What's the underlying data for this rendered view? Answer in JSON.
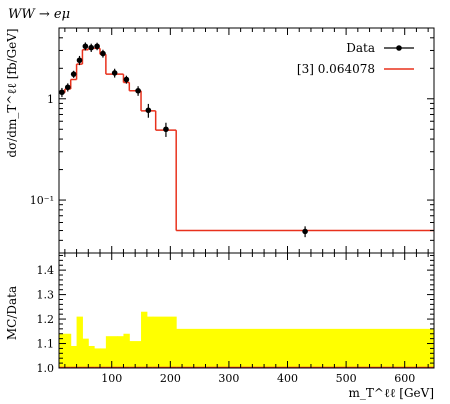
{
  "chart_data": [
    {
      "type": "line",
      "title": "WW → eμ",
      "ylabel": "dσ/dm_T^ℓℓ [fb/GeV]",
      "yscale": "log",
      "ylim": [
        0.03,
        5
      ],
      "xlim": [
        10,
        650
      ],
      "ytick_labels": [
        "1",
        "10⁻¹"
      ],
      "legend": {
        "placement": "top-right",
        "entries": [
          "Data",
          "[3] 0.064078"
        ]
      },
      "series": [
        {
          "name": "Data",
          "style": "points",
          "color": "#000000",
          "x": [
            15,
            25,
            35,
            45,
            55,
            65,
            75,
            85,
            105,
            125,
            145,
            162.5,
            192.5,
            430
          ],
          "y": [
            1.16,
            1.3,
            1.75,
            2.4,
            3.3,
            3.2,
            3.3,
            2.8,
            1.8,
            1.55,
            1.2,
            0.77,
            0.5,
            0.049
          ],
          "yerr": [
            0.12,
            0.12,
            0.14,
            0.25,
            0.3,
            0.3,
            0.28,
            0.25,
            0.18,
            0.14,
            0.13,
            0.12,
            0.08,
            0.006
          ]
        },
        {
          "name": "[3] 0.064078",
          "style": "step",
          "color": "#e8311c",
          "edges": [
            10,
            20,
            30,
            40,
            50,
            60,
            70,
            80,
            90,
            120,
            130,
            150,
            175,
            210,
            650
          ],
          "values": [
            1.15,
            1.25,
            1.55,
            2.2,
            3.05,
            3.15,
            3.15,
            2.75,
            1.75,
            1.45,
            1.2,
            0.76,
            0.49,
            0.05
          ]
        }
      ]
    },
    {
      "type": "area",
      "ylabel": "MC/Data",
      "xlabel": "m_T^ℓℓ [GeV]",
      "ylim": [
        1.0,
        1.47
      ],
      "xlim": [
        10,
        650
      ],
      "ytick_labels": [
        "1.0",
        "1.1",
        "1.2",
        "1.3",
        "1.4"
      ],
      "xtick_labels": [
        "100",
        "200",
        "300",
        "400",
        "500",
        "600"
      ],
      "band_color": "#ffff00",
      "ratio_line_color": "#e8311c",
      "edges": [
        10,
        30,
        40,
        50,
        60,
        70,
        80,
        90,
        110,
        120,
        130,
        150,
        160,
        170,
        210,
        650
      ],
      "upper": [
        1.14,
        1.09,
        1.21,
        1.12,
        1.09,
        1.08,
        1.08,
        1.13,
        1.13,
        1.14,
        1.11,
        1.23,
        1.21,
        1.21,
        1.16
      ],
      "ratio": [
        0.99,
        0.99,
        0.99,
        0.99,
        0.99,
        0.99,
        0.99,
        0.99,
        0.99,
        0.99,
        0.99,
        0.99,
        0.99,
        0.99,
        0.99
      ]
    }
  ]
}
